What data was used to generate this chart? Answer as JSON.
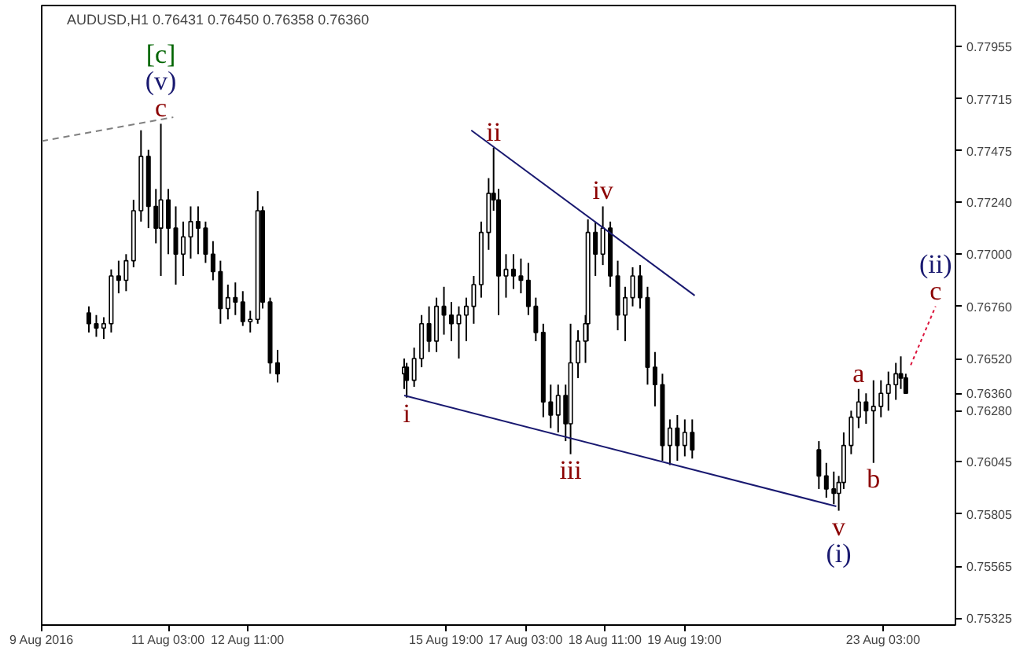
{
  "chart_data": {
    "type": "candlestick",
    "title": "AUDUSD,H1  0.76431 0.76450 0.76358 0.76360",
    "x": [
      "2016-08-09T19:00",
      "2016-08-09T22:00",
      "2016-08-10T01:00",
      "2016-08-10T04:00",
      "2016-08-10T07:00",
      "2016-08-10T10:00",
      "2016-08-10T13:00",
      "2016-08-10T16:00",
      "2016-08-10T19:00",
      "2016-08-10T22:00",
      "2016-08-11T00:00",
      "2016-08-11T03:00",
      "2016-08-11T06:00",
      "2016-08-11T09:00",
      "2016-08-11T12:00",
      "2016-08-11T15:00",
      "2016-08-11T18:00",
      "2016-08-11T21:00",
      "2016-08-12T00:00",
      "2016-08-12T03:00",
      "2016-08-12T06:00",
      "2016-08-12T09:00",
      "2016-08-12T12:00",
      "2016-08-12T15:00",
      "2016-08-12T17:00",
      "2016-08-12T20:00",
      "2016-08-12T23:00",
      "2016-08-15T02:00",
      "2016-08-15T03:00",
      "2016-08-15T06:00",
      "2016-08-15T09:00",
      "2016-08-15T12:00",
      "2016-08-15T15:00",
      "2016-08-15T18:00",
      "2016-08-15T21:00",
      "2016-08-16T00:00",
      "2016-08-16T03:00",
      "2016-08-16T06:00",
      "2016-08-16T09:00",
      "2016-08-16T12:00",
      "2016-08-16T14:00",
      "2016-08-16T16:00",
      "2016-08-16T19:00",
      "2016-08-16T22:00",
      "2016-08-17T01:00",
      "2016-08-17T04:00",
      "2016-08-17T07:00",
      "2016-08-17T10:00",
      "2016-08-17T13:00",
      "2016-08-17T16:00",
      "2016-08-17T19:00",
      "2016-08-17T21:00",
      "2016-08-18T00:00",
      "2016-08-18T03:00",
      "2016-08-18T04:00",
      "2016-08-18T07:00",
      "2016-08-18T10:00",
      "2016-08-18T13:00",
      "2016-08-18T16:00",
      "2016-08-18T19:00",
      "2016-08-18T22:00",
      "2016-08-19T01:00",
      "2016-08-19T04:00",
      "2016-08-19T07:00",
      "2016-08-19T10:00",
      "2016-08-19T13:00",
      "2016-08-19T16:00",
      "2016-08-19T19:00",
      "2016-08-19T22:00",
      "2016-08-22T01:00",
      "2016-08-22T04:00",
      "2016-08-22T07:00",
      "2016-08-22T09:00",
      "2016-08-22T11:00",
      "2016-08-22T14:00",
      "2016-08-22T17:00",
      "2016-08-22T20:00",
      "2016-08-22T23:00",
      "2016-08-23T02:00",
      "2016-08-23T05:00",
      "2016-08-23T08:00",
      "2016-08-23T10:00",
      "2016-08-23T12:00"
    ],
    "ohlc": [
      [
        0.7673,
        0.7676,
        0.7664,
        0.7668
      ],
      [
        0.7668,
        0.7672,
        0.7662,
        0.7666
      ],
      [
        0.7666,
        0.7671,
        0.7661,
        0.7668
      ],
      [
        0.7668,
        0.7693,
        0.7664,
        0.769
      ],
      [
        0.769,
        0.7697,
        0.7682,
        0.7688
      ],
      [
        0.7688,
        0.77,
        0.7683,
        0.7697
      ],
      [
        0.7697,
        0.7725,
        0.7694,
        0.772
      ],
      [
        0.772,
        0.7757,
        0.7715,
        0.7745
      ],
      [
        0.7745,
        0.7748,
        0.7712,
        0.7722
      ],
      [
        0.7722,
        0.773,
        0.7705,
        0.7712
      ],
      [
        0.7712,
        0.776,
        0.769,
        0.7725
      ],
      [
        0.7725,
        0.773,
        0.77,
        0.7712
      ],
      [
        0.7712,
        0.7722,
        0.7686,
        0.77
      ],
      [
        0.77,
        0.7715,
        0.769,
        0.7708
      ],
      [
        0.7708,
        0.7722,
        0.7698,
        0.7715
      ],
      [
        0.7715,
        0.7722,
        0.77,
        0.7712
      ],
      [
        0.7712,
        0.7715,
        0.7696,
        0.77
      ],
      [
        0.77,
        0.7706,
        0.7688,
        0.7692
      ],
      [
        0.7692,
        0.7697,
        0.7668,
        0.7675
      ],
      [
        0.7675,
        0.7686,
        0.767,
        0.768
      ],
      [
        0.768,
        0.7687,
        0.7672,
        0.7678
      ],
      [
        0.7678,
        0.7683,
        0.7667,
        0.7669
      ],
      [
        0.7669,
        0.7674,
        0.7664,
        0.767
      ],
      [
        0.767,
        0.7729,
        0.7668,
        0.772
      ],
      [
        0.772,
        0.7722,
        0.7675,
        0.7678
      ],
      [
        0.7678,
        0.768,
        0.7645,
        0.765
      ],
      [
        0.765,
        0.7656,
        0.7641,
        0.7645
      ],
      [
        0.7645,
        0.7652,
        0.7638,
        0.7648
      ],
      [
        0.7648,
        0.765,
        0.7634,
        0.7642
      ],
      [
        0.7642,
        0.7657,
        0.7639,
        0.7652
      ],
      [
        0.7652,
        0.7672,
        0.7648,
        0.7668
      ],
      [
        0.7668,
        0.7676,
        0.7655,
        0.766
      ],
      [
        0.766,
        0.768,
        0.7655,
        0.7676
      ],
      [
        0.7676,
        0.7685,
        0.7663,
        0.7672
      ],
      [
        0.7672,
        0.7678,
        0.766,
        0.7668
      ],
      [
        0.7668,
        0.7676,
        0.7652,
        0.7672
      ],
      [
        0.7672,
        0.768,
        0.766,
        0.7676
      ],
      [
        0.7676,
        0.769,
        0.7668,
        0.7686
      ],
      [
        0.7686,
        0.7715,
        0.768,
        0.771
      ],
      [
        0.771,
        0.7735,
        0.7702,
        0.7728
      ],
      [
        0.7728,
        0.7749,
        0.772,
        0.7725
      ],
      [
        0.7725,
        0.773,
        0.7672,
        0.769
      ],
      [
        0.769,
        0.77,
        0.768,
        0.7693
      ],
      [
        0.7693,
        0.77,
        0.7684,
        0.769
      ],
      [
        0.769,
        0.7698,
        0.7682,
        0.7688
      ],
      [
        0.7688,
        0.7696,
        0.7672,
        0.7676
      ],
      [
        0.7676,
        0.768,
        0.766,
        0.7664
      ],
      [
        0.7664,
        0.7668,
        0.7625,
        0.7632
      ],
      [
        0.7632,
        0.764,
        0.762,
        0.7626
      ],
      [
        0.7626,
        0.764,
        0.7618,
        0.7635
      ],
      [
        0.7635,
        0.764,
        0.7614,
        0.7622
      ],
      [
        0.7622,
        0.7668,
        0.7608,
        0.765
      ],
      [
        0.765,
        0.7665,
        0.7643,
        0.766
      ],
      [
        0.766,
        0.7672,
        0.765,
        0.7668
      ],
      [
        0.7668,
        0.7716,
        0.766,
        0.771
      ],
      [
        0.771,
        0.7715,
        0.769,
        0.77
      ],
      [
        0.77,
        0.7722,
        0.7695,
        0.7712
      ],
      [
        0.7712,
        0.7715,
        0.7685,
        0.769
      ],
      [
        0.769,
        0.7697,
        0.7665,
        0.7672
      ],
      [
        0.7672,
        0.7685,
        0.766,
        0.768
      ],
      [
        0.768,
        0.7694,
        0.7676,
        0.769
      ],
      [
        0.769,
        0.7695,
        0.7675,
        0.768
      ],
      [
        0.768,
        0.7685,
        0.764,
        0.7648
      ],
      [
        0.7648,
        0.7655,
        0.763,
        0.764
      ],
      [
        0.764,
        0.7645,
        0.7605,
        0.7612
      ],
      [
        0.7612,
        0.7624,
        0.7603,
        0.762
      ],
      [
        0.762,
        0.7626,
        0.7605,
        0.7612
      ],
      [
        0.7612,
        0.7624,
        0.7607,
        0.7618
      ],
      [
        0.7618,
        0.7624,
        0.7606,
        0.761
      ],
      [
        0.761,
        0.7614,
        0.7592,
        0.7598
      ],
      [
        0.7598,
        0.7604,
        0.7588,
        0.7592
      ],
      [
        0.7592,
        0.76,
        0.7585,
        0.759
      ],
      [
        0.759,
        0.7598,
        0.7582,
        0.7595
      ],
      [
        0.7595,
        0.7618,
        0.7592,
        0.7612
      ],
      [
        0.7612,
        0.7628,
        0.7608,
        0.7625
      ],
      [
        0.7625,
        0.7638,
        0.762,
        0.7632
      ],
      [
        0.7632,
        0.7636,
        0.7622,
        0.7628
      ],
      [
        0.7628,
        0.7642,
        0.7604,
        0.763
      ],
      [
        0.763,
        0.7642,
        0.7625,
        0.7636
      ],
      [
        0.7636,
        0.7646,
        0.7628,
        0.764
      ],
      [
        0.764,
        0.765,
        0.7633,
        0.7645
      ],
      [
        0.7645,
        0.7653,
        0.7638,
        0.7643
      ],
      [
        0.76431,
        0.7645,
        0.76358,
        0.7636
      ]
    ],
    "color": "#000000",
    "series": [
      {
        "type": "line",
        "color": "#191970",
        "line_style": "solid",
        "x": [
          "2016-08-15T02:00",
          "2016-08-22T08:00"
        ],
        "values": [
          0.7635,
          0.7584
        ]
      },
      {
        "type": "line",
        "color": "#191970",
        "line_style": "solid",
        "x": [
          "2016-08-16T05:00",
          "2016-08-19T23:00"
        ],
        "values": [
          0.7757,
          0.7681
        ]
      },
      {
        "type": "line",
        "color": "#808080",
        "line_style": "dashed",
        "x": [
          "2016-08-09T00:00",
          "2016-08-11T05:00"
        ],
        "values": [
          0.7752,
          0.7763
        ]
      },
      {
        "type": "line",
        "color": "#dc143c",
        "line_style": "dotted",
        "x": [
          "2016-08-23T14:00",
          "2016-08-24T00:00"
        ],
        "values": [
          0.7649,
          0.7676
        ]
      }
    ],
    "annotations": [
      {
        "text": "c",
        "x": "2016-08-11T00:00",
        "y": 0.776
      },
      {
        "text": "(v)",
        "x": "2016-08-11T00:00",
        "y": 0.776
      },
      {
        "text": "[c]",
        "x": "2016-08-11T00:00",
        "y": 0.776
      },
      {
        "text": "ii",
        "x": "2016-08-16T14:00",
        "y": 0.7749
      },
      {
        "text": "iv",
        "x": "2016-08-18T10:00",
        "y": 0.7722
      },
      {
        "text": "i",
        "x": "2016-08-15T03:00",
        "y": 0.7634
      },
      {
        "text": "iii",
        "x": "2016-08-17T21:00",
        "y": 0.7608
      },
      {
        "text": "v",
        "x": "2016-08-22T09:00",
        "y": 0.7582
      },
      {
        "text": "(i)",
        "x": "2016-08-22T09:00",
        "y": 0.7582
      },
      {
        "text": "a",
        "x": "2016-08-22T17:00",
        "y": 0.7638
      },
      {
        "text": "b",
        "x": "2016-08-22T23:00",
        "y": 0.7604
      },
      {
        "text": "c",
        "x": "2016-08-24T00:00",
        "y": 0.7676
      },
      {
        "text": "(ii)",
        "x": "2016-08-24T00:00",
        "y": 0.7676
      }
    ],
    "xlim": [
      "2016-08-09T00:00",
      "2016-08-24T08:00"
    ],
    "xticks": [
      {
        "value": "2016-08-09",
        "label": "9 Aug 2016"
      },
      {
        "value": "2016-08-11T03:00",
        "label": "11 Aug 03:00"
      },
      {
        "value": "2016-08-12T11:00",
        "label": "12 Aug 11:00"
      },
      {
        "value": "2016-08-15T19:00",
        "label": "15 Aug 19:00"
      },
      {
        "value": "2016-08-17T03:00",
        "label": "17 Aug 03:00"
      },
      {
        "value": "2016-08-18T11:00",
        "label": "18 Aug 11:00"
      },
      {
        "value": "2016-08-19T19:00",
        "label": "19 Aug 19:00"
      },
      {
        "value": "2016-08-23T03:00",
        "label": "23 Aug 03:00"
      }
    ],
    "ylim": [
      0.75294,
      0.78144
    ],
    "yticks": [
      {
        "value": 0.77955,
        "label": "0.77955"
      },
      {
        "value": 0.77715,
        "label": "0.77715"
      },
      {
        "value": 0.77475,
        "label": "0.77475"
      },
      {
        "value": 0.7724,
        "label": "0.77240"
      },
      {
        "value": 0.77,
        "label": "0.77000"
      },
      {
        "value": 0.7676,
        "label": "0.76760"
      },
      {
        "value": 0.7652,
        "label": "0.76520"
      },
      {
        "value": 0.7636,
        "label": "0.76360"
      },
      {
        "value": 0.7628,
        "label": "0.76280"
      },
      {
        "value": 0.76045,
        "label": "0.76045"
      },
      {
        "value": 0.75805,
        "label": "0.75805"
      },
      {
        "value": 0.75565,
        "label": "0.75565"
      },
      {
        "value": 0.75325,
        "label": "0.75325"
      }
    ],
    "grid": false
  }
}
